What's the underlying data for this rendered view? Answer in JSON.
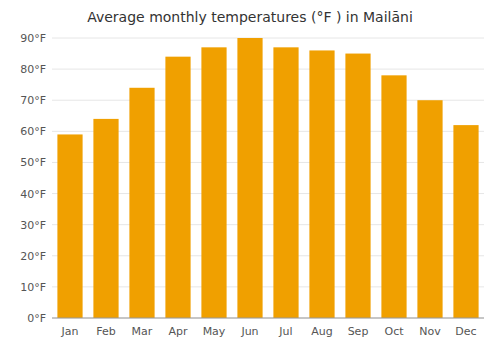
{
  "chart_data": {
    "type": "bar",
    "title": "Average monthly temperatures (°F ) in Mailāni",
    "categories": [
      "Jan",
      "Feb",
      "Mar",
      "Apr",
      "May",
      "Jun",
      "Jul",
      "Aug",
      "Sep",
      "Oct",
      "Nov",
      "Dec"
    ],
    "values": [
      59,
      64,
      74,
      84,
      87,
      90,
      87,
      86,
      85,
      78,
      70,
      62
    ],
    "color": "#F0A000",
    "ylim": [
      0,
      90
    ],
    "yticks": [
      {
        "value": 0,
        "label": "0°F"
      },
      {
        "value": 10,
        "label": "10°F"
      },
      {
        "value": 20,
        "label": "20°F"
      },
      {
        "value": 30,
        "label": "30°F"
      },
      {
        "value": 40,
        "label": "40°F"
      },
      {
        "value": 50,
        "label": "50°F"
      },
      {
        "value": 60,
        "label": "60°F"
      },
      {
        "value": 70,
        "label": "70°F"
      },
      {
        "value": 80,
        "label": "80°F"
      },
      {
        "value": 90,
        "label": "90°F"
      }
    ],
    "grid": true
  }
}
